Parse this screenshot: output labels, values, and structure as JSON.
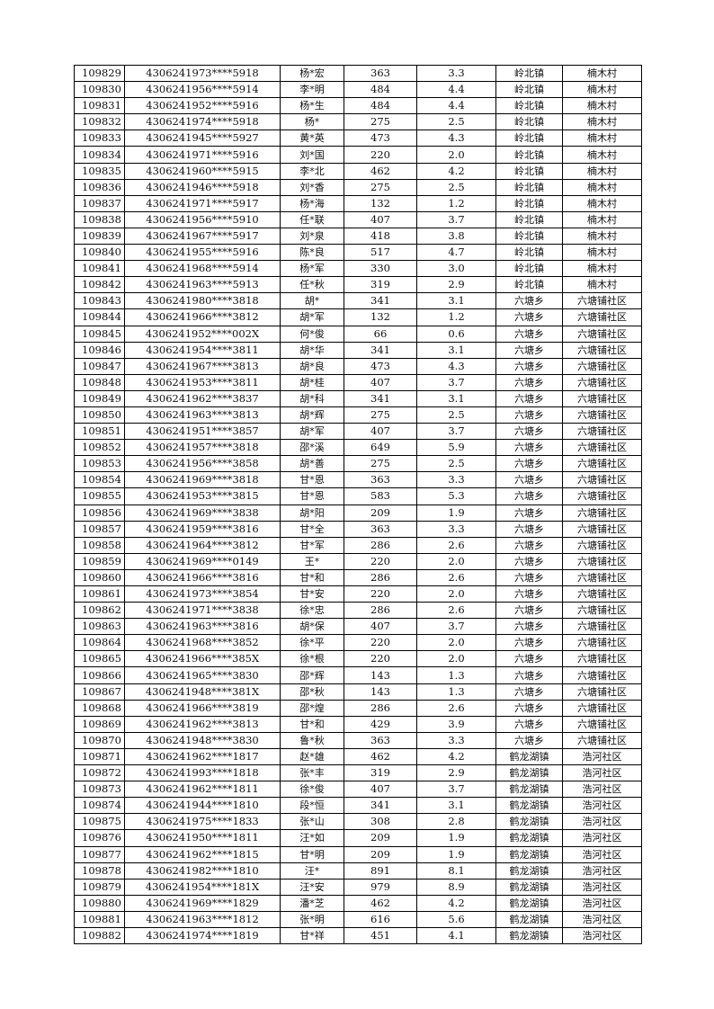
{
  "rows": [
    [
      "109829",
      "4306241973****5918",
      "杨*宏",
      "363",
      "3.3",
      "岭北镇",
      "楠木村"
    ],
    [
      "109830",
      "4306241956****5914",
      "李*明",
      "484",
      "4.4",
      "岭北镇",
      "楠木村"
    ],
    [
      "109831",
      "4306241952****5916",
      "杨*生",
      "484",
      "4.4",
      "岭北镇",
      "楠木村"
    ],
    [
      "109832",
      "4306241974****5918",
      "杨*",
      "275",
      "2.5",
      "岭北镇",
      "楠木村"
    ],
    [
      "109833",
      "4306241945****5927",
      "黄*英",
      "473",
      "4.3",
      "岭北镇",
      "楠木村"
    ],
    [
      "109834",
      "4306241971****5916",
      "刘*国",
      "220",
      "2.0",
      "岭北镇",
      "楠木村"
    ],
    [
      "109835",
      "4306241960****5915",
      "李*北",
      "462",
      "4.2",
      "岭北镇",
      "楠木村"
    ],
    [
      "109836",
      "4306241946****5918",
      "刘*香",
      "275",
      "2.5",
      "岭北镇",
      "楠木村"
    ],
    [
      "109837",
      "4306241971****5917",
      "杨*海",
      "132",
      "1.2",
      "岭北镇",
      "楠木村"
    ],
    [
      "109838",
      "4306241956****5910",
      "任*联",
      "407",
      "3.7",
      "岭北镇",
      "楠木村"
    ],
    [
      "109839",
      "4306241967****5917",
      "刘*泉",
      "418",
      "3.8",
      "岭北镇",
      "楠木村"
    ],
    [
      "109840",
      "4306241955****5916",
      "陈*良",
      "517",
      "4.7",
      "岭北镇",
      "楠木村"
    ],
    [
      "109841",
      "4306241968****5914",
      "杨*军",
      "330",
      "3.0",
      "岭北镇",
      "楠木村"
    ],
    [
      "109842",
      "4306241963****5913",
      "任*秋",
      "319",
      "2.9",
      "岭北镇",
      "楠木村"
    ],
    [
      "109843",
      "4306241980****3818",
      "胡*",
      "341",
      "3.1",
      "六塘乡",
      "六塘铺社区"
    ],
    [
      "109844",
      "4306241966****3812",
      "胡*军",
      "132",
      "1.2",
      "六塘乡",
      "六塘铺社区"
    ],
    [
      "109845",
      "4306241952****002X",
      "何*俊",
      "66",
      "0.6",
      "六塘乡",
      "六塘铺社区"
    ],
    [
      "109846",
      "4306241954****3811",
      "胡*华",
      "341",
      "3.1",
      "六塘乡",
      "六塘铺社区"
    ],
    [
      "109847",
      "4306241967****3813",
      "胡*良",
      "473",
      "4.3",
      "六塘乡",
      "六塘铺社区"
    ],
    [
      "109848",
      "4306241953****3811",
      "胡*桂",
      "407",
      "3.7",
      "六塘乡",
      "六塘铺社区"
    ],
    [
      "109849",
      "4306241962****3837",
      "胡*科",
      "341",
      "3.1",
      "六塘乡",
      "六塘铺社区"
    ],
    [
      "109850",
      "4306241963****3813",
      "胡*辉",
      "275",
      "2.5",
      "六塘乡",
      "六塘铺社区"
    ],
    [
      "109851",
      "4306241951****3857",
      "胡*军",
      "407",
      "3.7",
      "六塘乡",
      "六塘铺社区"
    ],
    [
      "109852",
      "4306241957****3818",
      "邵*溪",
      "649",
      "5.9",
      "六塘乡",
      "六塘铺社区"
    ],
    [
      "109853",
      "4306241956****3858",
      "胡*善",
      "275",
      "2.5",
      "六塘乡",
      "六塘铺社区"
    ],
    [
      "109854",
      "4306241969****3818",
      "甘*恩",
      "363",
      "3.3",
      "六塘乡",
      "六塘铺社区"
    ],
    [
      "109855",
      "4306241953****3815",
      "甘*恩",
      "583",
      "5.3",
      "六塘乡",
      "六塘铺社区"
    ],
    [
      "109856",
      "4306241969****3838",
      "胡*阳",
      "209",
      "1.9",
      "六塘乡",
      "六塘铺社区"
    ],
    [
      "109857",
      "4306241959****3816",
      "甘*全",
      "363",
      "3.3",
      "六塘乡",
      "六塘铺社区"
    ],
    [
      "109858",
      "4306241964****3812",
      "甘*军",
      "286",
      "2.6",
      "六塘乡",
      "六塘铺社区"
    ],
    [
      "109859",
      "4306241969****0149",
      "王*",
      "220",
      "2.0",
      "六塘乡",
      "六塘铺社区"
    ],
    [
      "109860",
      "4306241966****3816",
      "甘*和",
      "286",
      "2.6",
      "六塘乡",
      "六塘铺社区"
    ],
    [
      "109861",
      "4306241973****3854",
      "甘*安",
      "220",
      "2.0",
      "六塘乡",
      "六塘铺社区"
    ],
    [
      "109862",
      "4306241971****3838",
      "徐*忠",
      "286",
      "2.6",
      "六塘乡",
      "六塘铺社区"
    ],
    [
      "109863",
      "4306241963****3816",
      "胡*保",
      "407",
      "3.7",
      "六塘乡",
      "六塘铺社区"
    ],
    [
      "109864",
      "4306241968****3852",
      "徐*平",
      "220",
      "2.0",
      "六塘乡",
      "六塘铺社区"
    ],
    [
      "109865",
      "4306241966****385X",
      "徐*根",
      "220",
      "2.0",
      "六塘乡",
      "六塘铺社区"
    ],
    [
      "109866",
      "4306241965****3830",
      "邵*辉",
      "143",
      "1.3",
      "六塘乡",
      "六塘铺社区"
    ],
    [
      "109867",
      "4306241948****381X",
      "邵*秋",
      "143",
      "1.3",
      "六塘乡",
      "六塘铺社区"
    ],
    [
      "109868",
      "4306241966****3819",
      "邵*煌",
      "286",
      "2.6",
      "六塘乡",
      "六塘铺社区"
    ],
    [
      "109869",
      "4306241962****3813",
      "甘*和",
      "429",
      "3.9",
      "六塘乡",
      "六塘铺社区"
    ],
    [
      "109870",
      "4306241948****3830",
      "鲁*秋",
      "363",
      "3.3",
      "六塘乡",
      "六塘铺社区"
    ],
    [
      "109871",
      "4306241962****1817",
      "赵*雄",
      "462",
      "4.2",
      "鹤龙湖镇",
      "浩河社区"
    ],
    [
      "109872",
      "4306241993****1818",
      "张*丰",
      "319",
      "2.9",
      "鹤龙湖镇",
      "浩河社区"
    ],
    [
      "109873",
      "4306241962****1811",
      "徐*俊",
      "407",
      "3.7",
      "鹤龙湖镇",
      "浩河社区"
    ],
    [
      "109874",
      "4306241944****1810",
      "段*恒",
      "341",
      "3.1",
      "鹤龙湖镇",
      "浩河社区"
    ],
    [
      "109875",
      "4306241975****1833",
      "张*山",
      "308",
      "2.8",
      "鹤龙湖镇",
      "浩河社区"
    ],
    [
      "109876",
      "4306241950****1811",
      "汪*如",
      "209",
      "1.9",
      "鹤龙湖镇",
      "浩河社区"
    ],
    [
      "109877",
      "4306241962****1815",
      "甘*明",
      "209",
      "1.9",
      "鹤龙湖镇",
      "浩河社区"
    ],
    [
      "109878",
      "4306241982****1810",
      "汪*",
      "891",
      "8.1",
      "鹤龙湖镇",
      "浩河社区"
    ],
    [
      "109879",
      "4306241954****181X",
      "汪*安",
      "979",
      "8.9",
      "鹤龙湖镇",
      "浩河社区"
    ],
    [
      "109880",
      "4306241969****1829",
      "潘*芝",
      "462",
      "4.2",
      "鹤龙湖镇",
      "浩河社区"
    ],
    [
      "109881",
      "4306241963****1812",
      "张*明",
      "616",
      "5.6",
      "鹤龙湖镇",
      "浩河社区"
    ],
    [
      "109882",
      "4306241974****1819",
      "甘*祥",
      "451",
      "4.1",
      "鹤龙湖镇",
      "浩河社区"
    ]
  ]
}
